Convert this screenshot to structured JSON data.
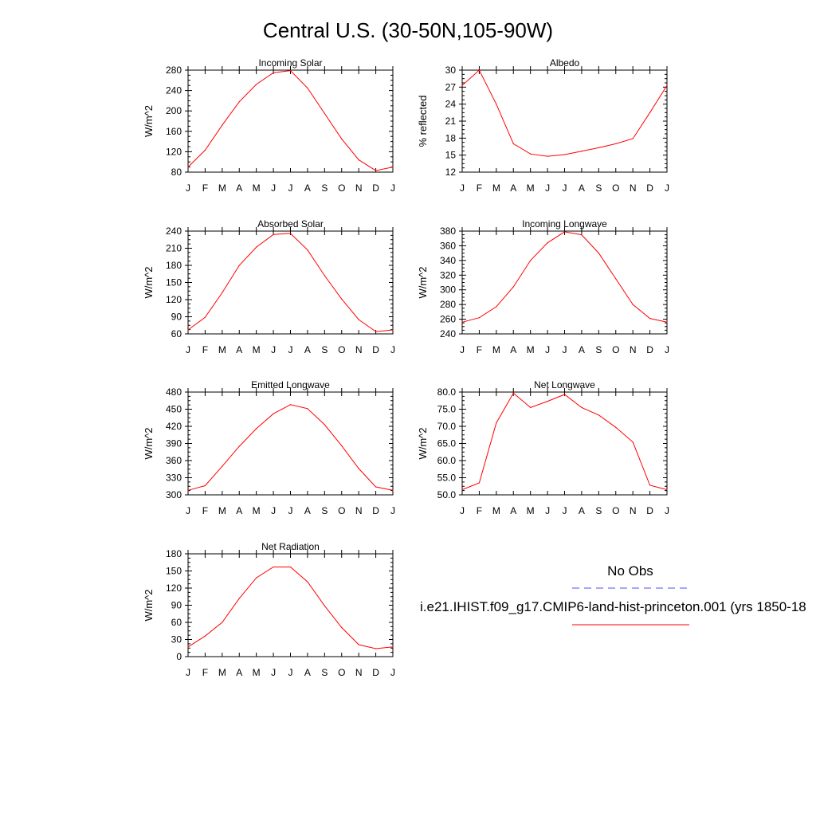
{
  "figure": {
    "title": "Central U.S. (30-50N,105-90W)",
    "legend": {
      "obs_label": "No Obs",
      "obs_color": "#4d4dff",
      "model_label": "i.e21.IHIST.f09_g17.CMIP6-land-hist-princeton.001 (yrs 1850-18",
      "model_color": "#ff0000"
    }
  },
  "chart_data": [
    {
      "type": "line",
      "title": "Incoming Solar",
      "ylabel": "W/m^2",
      "ylim": [
        80,
        280
      ],
      "yticks": [
        80,
        120,
        160,
        200,
        240,
        280
      ],
      "ytick_labels": [
        "80",
        "120",
        "160",
        "200",
        "240",
        "280"
      ],
      "x": [
        "J",
        "F",
        "M",
        "A",
        "M",
        "J",
        "J",
        "A",
        "S",
        "O",
        "N",
        "D",
        "J"
      ],
      "series": [
        {
          "values": [
            90,
            123,
            172,
            218,
            252,
            275,
            279,
            245,
            195,
            145,
            104,
            83,
            90
          ]
        }
      ]
    },
    {
      "type": "line",
      "title": "Albedo",
      "ylabel": "% reflected",
      "ylim": [
        12,
        30
      ],
      "yticks": [
        12,
        15,
        18,
        21,
        24,
        27,
        30
      ],
      "ytick_labels": [
        "12",
        "15",
        "18",
        "21",
        "24",
        "27",
        "30"
      ],
      "x": [
        "J",
        "F",
        "M",
        "A",
        "M",
        "J",
        "J",
        "A",
        "S",
        "O",
        "N",
        "D",
        "J"
      ],
      "series": [
        {
          "values": [
            27.3,
            30.0,
            24.0,
            17.0,
            15.2,
            14.8,
            15.1,
            15.7,
            16.3,
            17.0,
            17.9,
            22.5,
            27.3
          ]
        }
      ]
    },
    {
      "type": "line",
      "title": "Absorbed Solar",
      "ylabel": "W/m^2",
      "ylim": [
        60,
        240
      ],
      "yticks": [
        60,
        90,
        120,
        150,
        180,
        210,
        240
      ],
      "ytick_labels": [
        "60",
        "90",
        "120",
        "150",
        "180",
        "210",
        "240"
      ],
      "x": [
        "J",
        "F",
        "M",
        "A",
        "M",
        "J",
        "J",
        "A",
        "S",
        "O",
        "N",
        "D",
        "J"
      ],
      "series": [
        {
          "values": [
            67,
            89,
            132,
            180,
            212,
            234,
            236,
            207,
            162,
            121,
            85,
            64,
            67
          ]
        }
      ]
    },
    {
      "type": "line",
      "title": "Incoming Longwave",
      "ylabel": "W/m^2",
      "ylim": [
        240,
        380
      ],
      "yticks": [
        240,
        260,
        280,
        300,
        320,
        340,
        360,
        380
      ],
      "ytick_labels": [
        "240",
        "260",
        "280",
        "300",
        "320",
        "340",
        "360",
        "380"
      ],
      "x": [
        "J",
        "F",
        "M",
        "A",
        "M",
        "J",
        "J",
        "A",
        "S",
        "O",
        "N",
        "D",
        "J"
      ],
      "series": [
        {
          "values": [
            256,
            262,
            277,
            304,
            340,
            364,
            379,
            375,
            350,
            315,
            280,
            261,
            256
          ]
        }
      ]
    },
    {
      "type": "line",
      "title": "Emitted Longwave",
      "ylabel": "W/m^2",
      "ylim": [
        300,
        480
      ],
      "yticks": [
        300,
        330,
        360,
        390,
        420,
        450,
        480
      ],
      "ytick_labels": [
        "300",
        "330",
        "360",
        "390",
        "420",
        "450",
        "480"
      ],
      "x": [
        "J",
        "F",
        "M",
        "A",
        "M",
        "J",
        "J",
        "A",
        "S",
        "O",
        "N",
        "D",
        "J"
      ],
      "series": [
        {
          "values": [
            308,
            316,
            350,
            385,
            416,
            442,
            458,
            451,
            423,
            386,
            346,
            314,
            308
          ]
        }
      ]
    },
    {
      "type": "line",
      "title": "Net Longwave",
      "ylabel": "W/m^2",
      "ylim": [
        50,
        80
      ],
      "yticks": [
        50,
        55,
        60,
        65,
        70,
        75,
        80
      ],
      "ytick_labels": [
        "50.0",
        "55.0",
        "60.0",
        "65.0",
        "70.0",
        "75.0",
        "80.0"
      ],
      "x": [
        "J",
        "F",
        "M",
        "A",
        "M",
        "J",
        "J",
        "A",
        "S",
        "O",
        "N",
        "D",
        "J"
      ],
      "series": [
        {
          "values": [
            51.5,
            53.5,
            71.0,
            79.7,
            75.5,
            77.3,
            79.3,
            75.5,
            73.3,
            69.7,
            65.4,
            52.8,
            51.5
          ]
        }
      ]
    },
    {
      "type": "line",
      "title": "Net Radiation",
      "ylabel": "W/m^2",
      "ylim": [
        0,
        180
      ],
      "yticks": [
        0,
        30,
        60,
        90,
        120,
        150,
        180
      ],
      "ytick_labels": [
        "0",
        "30",
        "60",
        "90",
        "120",
        "150",
        "180"
      ],
      "x": [
        "J",
        "F",
        "M",
        "A",
        "M",
        "J",
        "J",
        "A",
        "S",
        "O",
        "N",
        "D",
        "J"
      ],
      "series": [
        {
          "values": [
            17,
            36,
            60,
            102,
            138,
            157,
            157,
            131,
            89,
            51,
            21,
            14,
            17
          ]
        }
      ]
    }
  ]
}
